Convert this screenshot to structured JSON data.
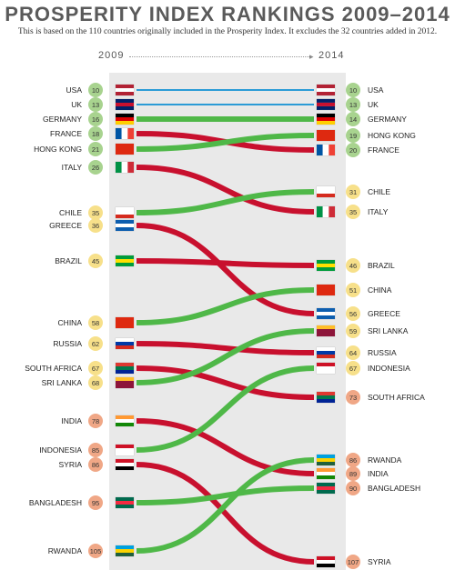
{
  "title": "PROSPERITY INDEX RANKINGS 2009–2014",
  "subtitle": "This is based on the 110 countries originally included in the Prosperity Index. It excludes the 32 countries added in 2012.",
  "year_left": "2009",
  "year_right": "2014",
  "chart_data": {
    "type": "line",
    "title": "PROSPERITY INDEX RANKINGS 2009–2014",
    "x": [
      "2009",
      "2014"
    ],
    "y_axis": "rank (lower is better), inverted",
    "series": [
      {
        "name": "USA",
        "values": [
          10,
          10
        ],
        "color": "#2b9bd6"
      },
      {
        "name": "UK",
        "values": [
          13,
          13
        ],
        "color": "#2b9bd6"
      },
      {
        "name": "GERMANY",
        "values": [
          16,
          14
        ],
        "color": "#4fb848"
      },
      {
        "name": "FRANCE",
        "values": [
          18,
          20
        ],
        "color": "#c8102e"
      },
      {
        "name": "HONG KONG",
        "values": [
          21,
          19
        ],
        "color": "#4fb848"
      },
      {
        "name": "ITALY",
        "values": [
          26,
          35
        ],
        "color": "#c8102e"
      },
      {
        "name": "CHILE",
        "values": [
          35,
          31
        ],
        "color": "#4fb848"
      },
      {
        "name": "GREECE",
        "values": [
          36,
          56
        ],
        "color": "#c8102e"
      },
      {
        "name": "BRAZIL",
        "values": [
          45,
          46
        ],
        "color": "#c8102e"
      },
      {
        "name": "CHINA",
        "values": [
          58,
          51
        ],
        "color": "#4fb848"
      },
      {
        "name": "RUSSIA",
        "values": [
          62,
          64
        ],
        "color": "#c8102e"
      },
      {
        "name": "SOUTH AFRICA",
        "values": [
          67,
          73
        ],
        "color": "#c8102e"
      },
      {
        "name": "SRI LANKA",
        "values": [
          68,
          59
        ],
        "color": "#4fb848"
      },
      {
        "name": "INDIA",
        "values": [
          78,
          89
        ],
        "color": "#c8102e"
      },
      {
        "name": "INDONESIA",
        "values": [
          85,
          67
        ],
        "color": "#4fb848"
      },
      {
        "name": "SYRIA",
        "values": [
          86,
          107
        ],
        "color": "#c8102e"
      },
      {
        "name": "BANGLADESH",
        "values": [
          95,
          90
        ],
        "color": "#4fb848"
      },
      {
        "name": "RWANDA",
        "values": [
          105,
          86
        ],
        "color": "#4fb848"
      }
    ],
    "badge_colors": {
      "top": "#a8d38f",
      "middle": "#f7e08a",
      "bottom": "#f0a786"
    }
  }
}
